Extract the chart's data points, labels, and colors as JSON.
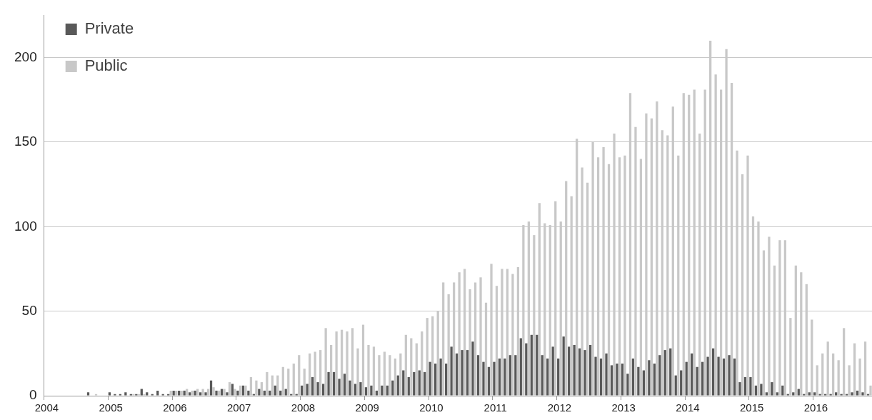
{
  "chart_data": {
    "type": "bar",
    "categories": [
      "2004",
      null,
      null,
      null,
      null,
      null,
      null,
      null,
      null,
      null,
      null,
      null,
      "2005",
      null,
      null,
      null,
      null,
      null,
      null,
      null,
      null,
      null,
      null,
      null,
      "2006",
      null,
      null,
      null,
      null,
      null,
      null,
      null,
      null,
      null,
      null,
      null,
      "2007",
      null,
      null,
      null,
      null,
      null,
      null,
      null,
      null,
      null,
      null,
      null,
      "2008",
      null,
      null,
      null,
      null,
      null,
      null,
      null,
      null,
      null,
      null,
      null,
      "2009",
      null,
      null,
      null,
      null,
      null,
      null,
      null,
      null,
      null,
      null,
      null,
      "2010",
      null,
      null,
      null,
      null,
      null,
      null,
      null,
      null,
      null,
      null,
      null,
      "2011",
      null,
      null,
      null,
      null,
      null,
      null,
      null,
      null,
      null,
      null,
      null,
      "2012",
      null,
      null,
      null,
      null,
      null,
      null,
      null,
      null,
      null,
      null,
      null,
      "2013",
      null,
      null,
      null,
      null,
      null,
      null,
      null,
      null,
      null,
      null,
      null,
      "2014",
      null,
      null,
      null,
      null,
      null,
      null,
      null,
      null,
      null,
      null,
      null,
      "2015",
      null,
      null,
      null,
      null,
      null,
      null,
      null,
      null,
      null,
      null,
      null,
      "2016",
      null,
      null,
      null,
      null,
      null,
      null,
      null,
      null,
      null,
      null
    ],
    "series": [
      {
        "name": "Private",
        "color": "#595959",
        "values": [
          0,
          0,
          0,
          0,
          0,
          0,
          0,
          0,
          2,
          0,
          0,
          0,
          2,
          1,
          1,
          2,
          1,
          1,
          4,
          2,
          1,
          3,
          1,
          1,
          3,
          3,
          3,
          2,
          3,
          2,
          2,
          9,
          3,
          4,
          2,
          7,
          3,
          6,
          3,
          1,
          4,
          3,
          3,
          6,
          3,
          4,
          1,
          1,
          6,
          7,
          11,
          8,
          7,
          14,
          14,
          10,
          13,
          9,
          7,
          8,
          5,
          6,
          3,
          6,
          6,
          9,
          12,
          15,
          11,
          14,
          15,
          14,
          20,
          19,
          22,
          19,
          29,
          25,
          27,
          27,
          32,
          24,
          20,
          17,
          20,
          22,
          22,
          24,
          24,
          34,
          31,
          36,
          36,
          24,
          22,
          29,
          22,
          35,
          29,
          30,
          28,
          27,
          30,
          23,
          22,
          25,
          18,
          19,
          19,
          13,
          22,
          17,
          15,
          21,
          19,
          24,
          27,
          28,
          12,
          15,
          20,
          25,
          17,
          20,
          23,
          28,
          23,
          22,
          24,
          22,
          8,
          11,
          11,
          6,
          7,
          2,
          8,
          2,
          6,
          1,
          2,
          4,
          1,
          2,
          2,
          1,
          1,
          1,
          2,
          1,
          1,
          2,
          3,
          2,
          1
        ]
      },
      {
        "name": "Public",
        "color": "#c8c8c8",
        "values": [
          0,
          0,
          0,
          0,
          0,
          0,
          0,
          0,
          0,
          1,
          0,
          0,
          0,
          0,
          0,
          0,
          1,
          1,
          1,
          0,
          0,
          0,
          0,
          3,
          3,
          3,
          4,
          3,
          4,
          4,
          4,
          5,
          3,
          4,
          8,
          4,
          6,
          6,
          11,
          9,
          8,
          14,
          12,
          12,
          17,
          16,
          19,
          24,
          16,
          25,
          26,
          27,
          40,
          30,
          38,
          39,
          38,
          40,
          28,
          42,
          30,
          29,
          24,
          26,
          24,
          22,
          25,
          36,
          34,
          31,
          38,
          46,
          47,
          50,
          67,
          60,
          67,
          73,
          75,
          63,
          67,
          70,
          55,
          78,
          65,
          75,
          75,
          72,
          76,
          101,
          103,
          95,
          114,
          102,
          101,
          115,
          103,
          127,
          118,
          152,
          135,
          126,
          150,
          141,
          147,
          137,
          155,
          141,
          142,
          179,
          159,
          140,
          167,
          164,
          174,
          157,
          154,
          171,
          142,
          179,
          178,
          181,
          155,
          181,
          210,
          190,
          181,
          205,
          185,
          145,
          131,
          142,
          106,
          103,
          86,
          94,
          77,
          92,
          92,
          46,
          77,
          73,
          66,
          45,
          18,
          25,
          32,
          25,
          21,
          40,
          18,
          31,
          22,
          32,
          6
        ]
      }
    ],
    "ylim": [
      0,
      225
    ],
    "yticks": [
      0,
      50,
      100,
      150,
      200
    ],
    "grid": "y",
    "legend": "top left"
  }
}
